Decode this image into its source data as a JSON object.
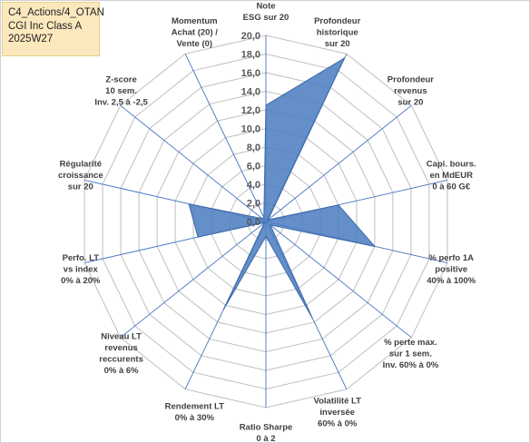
{
  "title_box": {
    "line1": "C4_Actions/4_OTAN",
    "line2": "CGI Inc Class A",
    "line3": "2025W27"
  },
  "chart_data": {
    "type": "radar",
    "rlim": [
      0,
      20
    ],
    "tick_labels": [
      "0,0",
      "2,0",
      "4,0",
      "6,0",
      "8,0",
      "10,0",
      "12,0",
      "14,0",
      "16,0",
      "18,0",
      "20,0"
    ],
    "categories": [
      [
        "Note",
        "ESG sur 20"
      ],
      [
        "Profondeur",
        "historique",
        "sur 20"
      ],
      [
        "Profondeur",
        "revenus",
        "sur 20"
      ],
      [
        "Capi. bours.",
        "en MdEUR",
        "0 à 60 G€"
      ],
      [
        "% perfo 1A",
        "positive",
        "40% à 100%"
      ],
      [
        "% perte max.",
        "sur 1 sem.",
        "Inv. 60% à 0%"
      ],
      [
        "Volatilité LT",
        "inversée",
        "60% à 0%"
      ],
      [
        "Ratio Sharpe",
        "0 à 2"
      ],
      [
        "Rendement LT",
        "0% à 30%"
      ],
      [
        "Niveau LT",
        "revenus",
        "reccurents",
        "0% à 6%"
      ],
      [
        "Perfo. LT",
        "vs index",
        "0% à 20%"
      ],
      [
        "Régularité",
        "croissance",
        "sur 20"
      ],
      [
        "Z-score",
        "10 sem.",
        "Inv. 2,5 à -2,5"
      ],
      [
        "Momentum",
        "Achat (20) /",
        "Vente (0)"
      ]
    ],
    "series": [
      {
        "values": [
          12.5,
          19.5,
          0.3,
          8.0,
          12.0,
          0.6,
          11.5,
          1.6,
          10.5,
          0.2,
          7.5,
          8.5,
          0.5,
          0.5
        ]
      }
    ],
    "colors": {
      "fill": "#4f7fc0",
      "stroke": "#3b69a8",
      "grid": "#bfbfbf",
      "spoke": "#4472c4"
    }
  }
}
